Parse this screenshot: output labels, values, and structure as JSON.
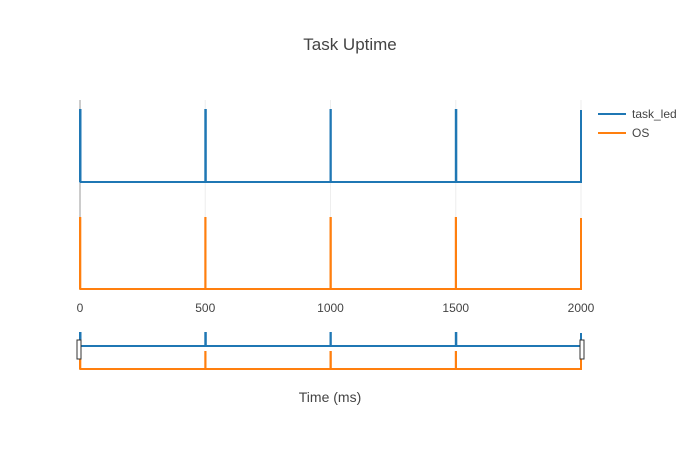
{
  "chart_data": {
    "type": "line",
    "title": "Task Uptime",
    "xlabel": "Time (ms)",
    "ylabel": "",
    "xlim": [
      0,
      2000
    ],
    "ylim": [
      0,
      1
    ],
    "x_ticks": [
      "0",
      "500",
      "1000",
      "1500",
      "2000"
    ],
    "x_tick_values": [
      0,
      500,
      1000,
      1500,
      2000
    ],
    "legend_position": "top-right",
    "grid": true,
    "range_slider": true,
    "series": [
      {
        "name": "task_led",
        "color": "#1f77b4",
        "baseline": 0,
        "pulse_value": 1,
        "pulses": [
          {
            "start": 0,
            "end": 2
          },
          {
            "start": 500,
            "end": 502
          },
          {
            "start": 1000,
            "end": 1001
          },
          {
            "start": 1500,
            "end": 1502
          },
          {
            "start": 2000,
            "end": 2000
          }
        ]
      },
      {
        "name": "OS",
        "color": "#ff7f0e",
        "baseline": 0,
        "pulse_value": 1,
        "pulses": [
          {
            "start": 0,
            "end": 1
          },
          {
            "start": 500,
            "end": 501
          },
          {
            "start": 1000,
            "end": 1001
          },
          {
            "start": 1500,
            "end": 1501
          },
          {
            "start": 2000,
            "end": 2000
          }
        ]
      }
    ]
  }
}
